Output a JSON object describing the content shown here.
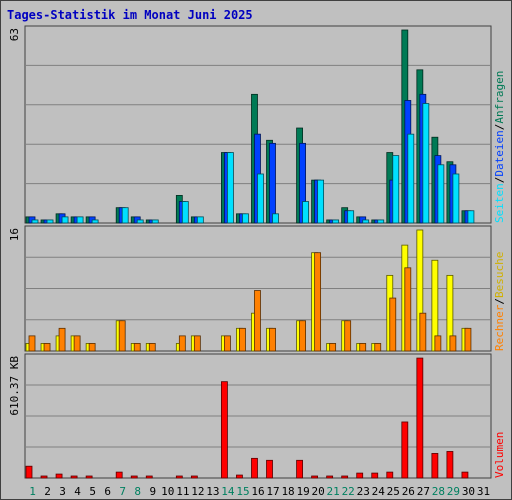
{
  "chart_data": {
    "type": "bar",
    "title": "Tages-Statistik im Monat Juni 2025",
    "categories": [
      "1",
      "2",
      "3",
      "4",
      "5",
      "6",
      "7",
      "8",
      "9",
      "10",
      "11",
      "12",
      "13",
      "14",
      "15",
      "16",
      "17",
      "18",
      "19",
      "20",
      "21",
      "22",
      "23",
      "24",
      "25",
      "26",
      "27",
      "28",
      "29",
      "30",
      "31"
    ],
    "weekend_days": [
      "1",
      "7",
      "8",
      "14",
      "15",
      "21",
      "22",
      "28",
      "29"
    ],
    "panels": [
      {
        "name": "requests",
        "ymax_label": "63",
        "ymax": 63,
        "legend": [
          "Anfragen",
          "Dateien",
          "Seiten"
        ],
        "series": [
          {
            "name": "Anfragen",
            "color": "#007a55",
            "values": [
              2,
              1,
              3,
              2,
              2,
              0,
              5,
              2,
              1,
              0,
              9,
              2,
              0,
              23,
              3,
              42,
              27,
              0,
              31,
              14,
              1,
              5,
              2,
              1,
              23,
              63,
              50,
              28,
              20,
              4,
              0
            ]
          },
          {
            "name": "Dateien",
            "color": "#0040ff",
            "values": [
              2,
              1,
              3,
              2,
              2,
              0,
              5,
              2,
              1,
              0,
              7,
              2,
              0,
              23,
              3,
              29,
              26,
              0,
              26,
              14,
              1,
              4,
              2,
              1,
              14,
              40,
              42,
              22,
              19,
              4,
              0
            ]
          },
          {
            "name": "Seiten",
            "color": "#00e0ff",
            "values": [
              1,
              1,
              2,
              2,
              1,
              0,
              5,
              1,
              1,
              0,
              7,
              2,
              0,
              23,
              3,
              16,
              3,
              0,
              7,
              14,
              1,
              4,
              1,
              1,
              22,
              29,
              39,
              19,
              16,
              4,
              0
            ]
          }
        ]
      },
      {
        "name": "visits",
        "ymax_label": "16",
        "ymax": 16,
        "legend": [
          "Besuche",
          "Rechner"
        ],
        "series": [
          {
            "name": "Besuche",
            "color": "#ffff00",
            "values": [
              1,
              1,
              2,
              2,
              1,
              0,
              4,
              1,
              1,
              0,
              1,
              2,
              0,
              2,
              3,
              5,
              3,
              0,
              4,
              13,
              1,
              4,
              1,
              1,
              10,
              14,
              16,
              12,
              10,
              3,
              0
            ]
          },
          {
            "name": "Rechner",
            "color": "#ff8000",
            "values": [
              2,
              1,
              3,
              2,
              1,
              0,
              4,
              1,
              1,
              0,
              2,
              2,
              0,
              2,
              3,
              8,
              3,
              0,
              4,
              13,
              1,
              4,
              1,
              1,
              7,
              11,
              5,
              2,
              2,
              3,
              0
            ]
          }
        ]
      },
      {
        "name": "volume",
        "ymax_label": "610.37 KB",
        "ymax": 610.37,
        "legend": [
          "Volumen"
        ],
        "series": [
          {
            "name": "Volumen",
            "color": "#ff0000",
            "values": [
              60,
              10,
              20,
              10,
              5,
              0,
              30,
              5,
              5,
              0,
              5,
              5,
              0,
              490,
              15,
              100,
              90,
              0,
              90,
              5,
              5,
              10,
              25,
              25,
              30,
              285,
              610,
              125,
              135,
              30,
              0
            ]
          }
        ]
      }
    ],
    "legend_slash": "/"
  }
}
